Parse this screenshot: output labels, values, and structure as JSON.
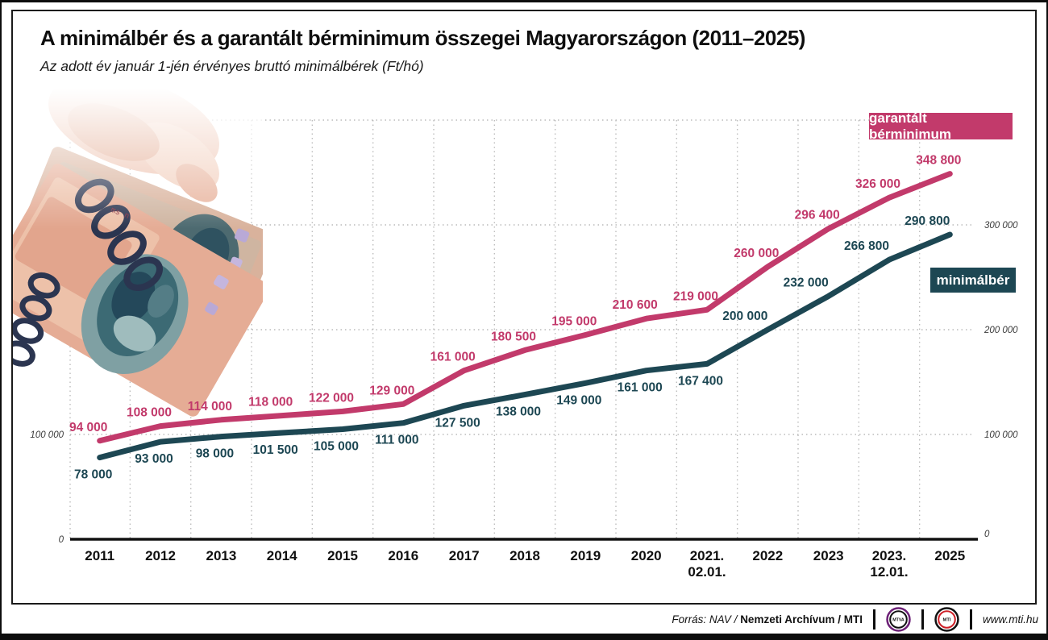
{
  "page": {
    "title": "A minimálbér és a garantált bérminimum összegei Magyarországon (2011–2025)",
    "subtitle": "Az adott év január 1-jén érvényes bruttó minimálbérek (Ft/hó)"
  },
  "legend": {
    "garantalt_label": "garantált bérminimum",
    "minimalber_label": "minimálbér"
  },
  "colors": {
    "garantalt": "#c23a6b",
    "minimalber": "#1d4753",
    "grid": "#bcbcbc",
    "axis": "#111111",
    "legend_garantalt_bg": "#c23a6b",
    "legend_minimalber_bg": "#1d4753"
  },
  "footer": {
    "source_italic": "Forrás: NAV /",
    "source_bold": "Nemzeti Archívum / MTI",
    "mtva_logo": "MTVA",
    "mti_logo": "MTI",
    "website": "www.mti.hu"
  },
  "chart_data": {
    "type": "line",
    "title": "A minimálbér és a garantált bérminimum összegei Magyarországon (2011–2025)",
    "subtitle": "Az adott év január 1-jén érvényes bruttó minimálbérek (Ft/hó)",
    "categories": [
      "2011",
      "2012",
      "2013",
      "2014",
      "2015",
      "2016",
      "2017",
      "2018",
      "2019",
      "2020",
      "2021.\n02.01.",
      "2022",
      "2023",
      "2023.\n12.01.",
      "2025"
    ],
    "series": [
      {
        "name": "garantált bérminimum",
        "color": "#c23a6b",
        "values": [
          94000,
          108000,
          114000,
          118000,
          122000,
          129000,
          161000,
          180500,
          195000,
          210600,
          219000,
          260000,
          296400,
          326000,
          348800
        ]
      },
      {
        "name": "minimálbér",
        "color": "#1d4753",
        "values": [
          78000,
          93000,
          98000,
          101500,
          105000,
          111000,
          127500,
          138000,
          149000,
          161000,
          167400,
          200000,
          232000,
          266800,
          290800
        ]
      }
    ],
    "unit": "Ft/hó",
    "ylim": [
      0,
      400000
    ],
    "gridlines_y": [
      100000,
      200000,
      300000,
      400000
    ],
    "yticks_left": [
      0,
      100000
    ],
    "yticks_right": [
      0,
      100000,
      200000,
      300000
    ],
    "grid": "dotted",
    "legend_position": "right-inline"
  }
}
